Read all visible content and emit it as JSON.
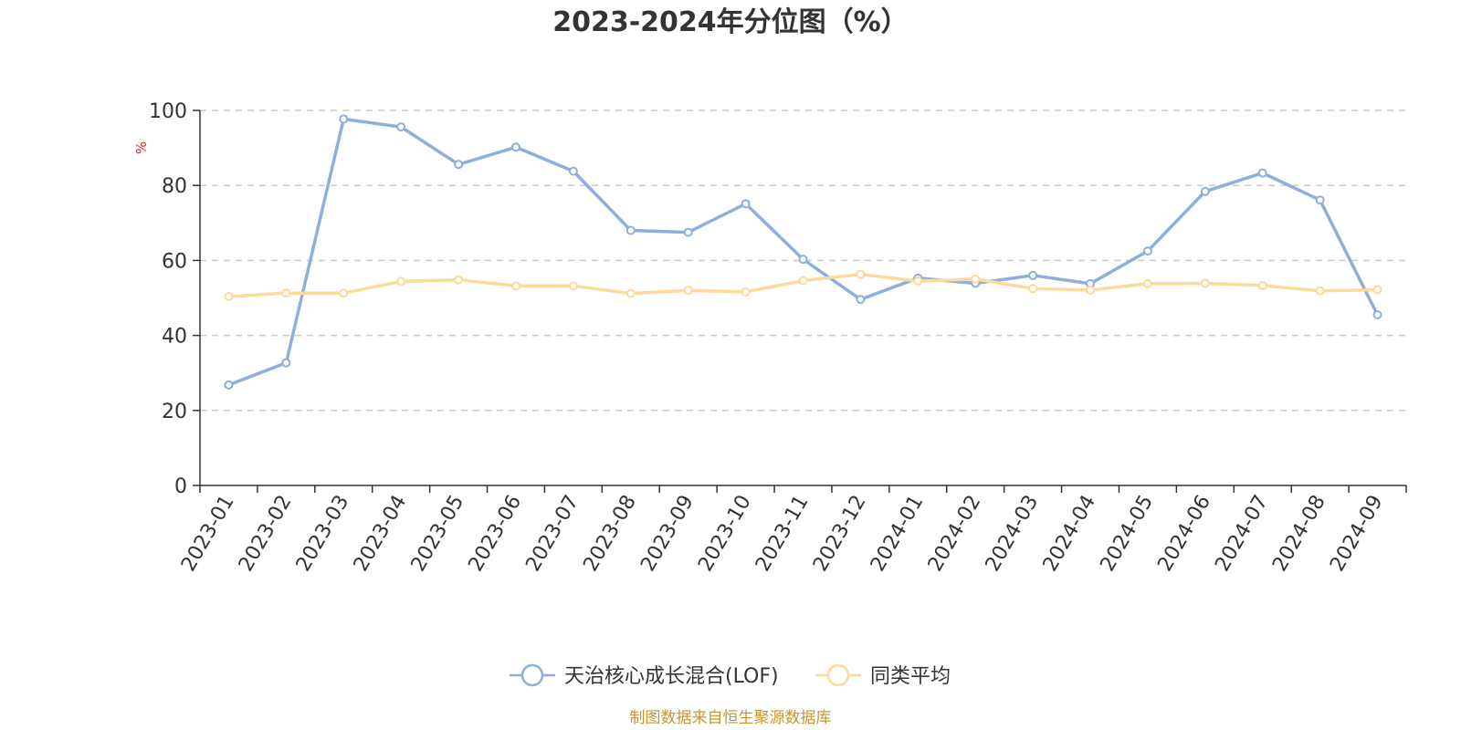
{
  "chart_data": {
    "type": "line",
    "title": "2023-2024年分位图（%）",
    "ylabel": "%",
    "xlabel": "",
    "ylim": [
      0,
      100
    ],
    "yticks": [
      0,
      20,
      40,
      60,
      80,
      100
    ],
    "grid": true,
    "legend_position": "bottom-center",
    "categories": [
      "2023-01",
      "2023-02",
      "2023-03",
      "2023-04",
      "2023-05",
      "2023-06",
      "2023-07",
      "2023-08",
      "2023-09",
      "2023-10",
      "2023-11",
      "2023-12",
      "2024-01",
      "2024-02",
      "2024-03",
      "2024-04",
      "2024-05",
      "2024-06",
      "2024-07",
      "2024-08",
      "2024-09"
    ],
    "series": [
      {
        "name": "天治核心成长混合(LOF)",
        "color": "#8eaedb",
        "values": [
          26.8,
          32.7,
          97.7,
          95.6,
          85.6,
          90.2,
          83.8,
          68.0,
          67.5,
          75.1,
          60.3,
          49.6,
          55.3,
          53.9,
          56.0,
          53.8,
          62.5,
          78.4,
          83.3,
          76.1,
          45.5
        ]
      },
      {
        "name": "同类平均",
        "color": "#fdd99b",
        "values": [
          50.4,
          51.3,
          51.3,
          54.4,
          54.8,
          53.2,
          53.2,
          51.2,
          52.0,
          51.6,
          54.6,
          56.3,
          54.5,
          55.0,
          52.5,
          52.1,
          53.8,
          53.9,
          53.3,
          51.9,
          52.2
        ]
      }
    ],
    "unit_color": "#e02020",
    "source_color": "#c8962c"
  },
  "source_text": "制图数据来自恒生聚源数据库"
}
